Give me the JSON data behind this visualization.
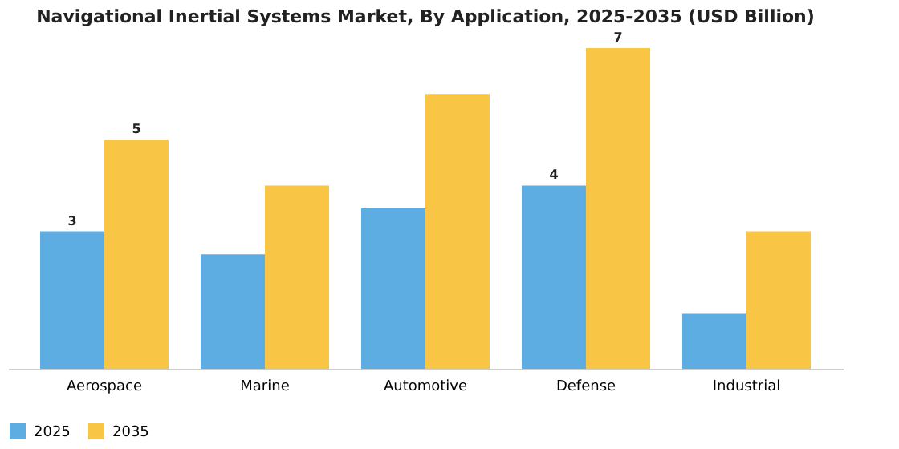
{
  "chart_data": {
    "type": "bar",
    "title": "Navigational Inertial Systems Market, By Application, 2025-2035 (USD Billion)",
    "categories": [
      "Aerospace",
      "Marine",
      "Automotive",
      "Defense",
      "Industrial"
    ],
    "series": [
      {
        "name": "2025",
        "color": "#5dade2",
        "values": [
          3,
          2.5,
          3.5,
          4,
          1.2
        ],
        "value_labels": [
          "3",
          null,
          null,
          "4",
          null
        ]
      },
      {
        "name": "2035",
        "color": "#f9c544",
        "values": [
          5,
          4,
          6,
          7,
          3
        ],
        "value_labels": [
          "5",
          null,
          null,
          "7",
          null
        ]
      }
    ],
    "tick_labels": "x",
    "grid": false,
    "legend": "bottom"
  }
}
